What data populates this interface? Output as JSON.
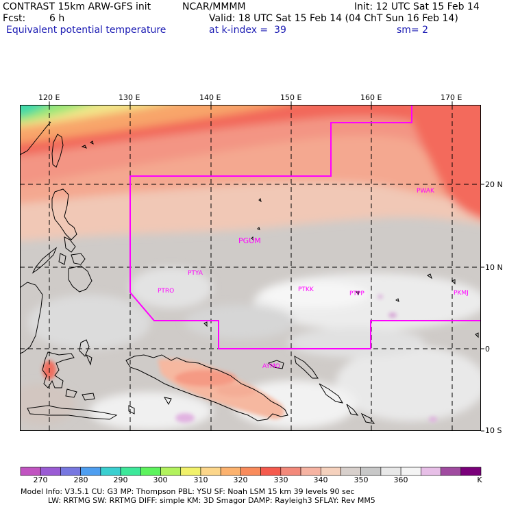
{
  "header": {
    "model_title": "CONTRAST 15km ARW-GFS init",
    "org": "NCAR/MMMM",
    "init": "Init: 12 UTC Sat 15 Feb 14",
    "fcst_label": "Fcst:",
    "fcst_value": "6 h",
    "valid": "Valid: 18 UTC Sat 15 Feb 14 (04 ChT Sun 16 Feb 14)",
    "field": "Equivalent potential temperature",
    "level": "at k-index =  39",
    "smoothing": "sm= 2"
  },
  "axes": {
    "lon_labels": [
      "120 E",
      "130 E",
      "140 E",
      "150 E",
      "160 E",
      "170 E"
    ],
    "lat_labels": [
      "20 N",
      "10 N",
      "0",
      "10 S"
    ]
  },
  "stations": [
    "PGUM",
    "PTYA",
    "PTRO",
    "PTKK",
    "PTPP",
    "PKMJ",
    "PWAK",
    "AYMO"
  ],
  "colorbar": {
    "labels": [
      "270",
      "280",
      "290",
      "300",
      "310",
      "320",
      "330",
      "340",
      "350",
      "360"
    ],
    "unit": "K",
    "colors": [
      "#c154c1",
      "#9a5bd4",
      "#7777e0",
      "#4e9ef0",
      "#3acfd0",
      "#3de89a",
      "#5df35d",
      "#b2f25d",
      "#f1f16a",
      "#fcd68a",
      "#fcb26e",
      "#f98b5b",
      "#f55a4d",
      "#f3897a",
      "#f6b3a2",
      "#f5d1bd",
      "#d8d0cc",
      "#c8c8c8",
      "#e8e8e8",
      "#f4f4f4",
      "#e7bfe7",
      "#a04ba0",
      "#7a007a"
    ]
  },
  "model_info": {
    "line1": "Model Info: V3.5.1     CU: G3       MP: Thompson     PBL: YSU        SF: Noah LSM     15 km    39 levels    90 sec",
    "line2": "LW: RRTMG    SW: RRTMG   DIFF: simple KM: 3D Smagor DAMP: Rayleigh3   SFLAY: Rev MM5"
  }
}
